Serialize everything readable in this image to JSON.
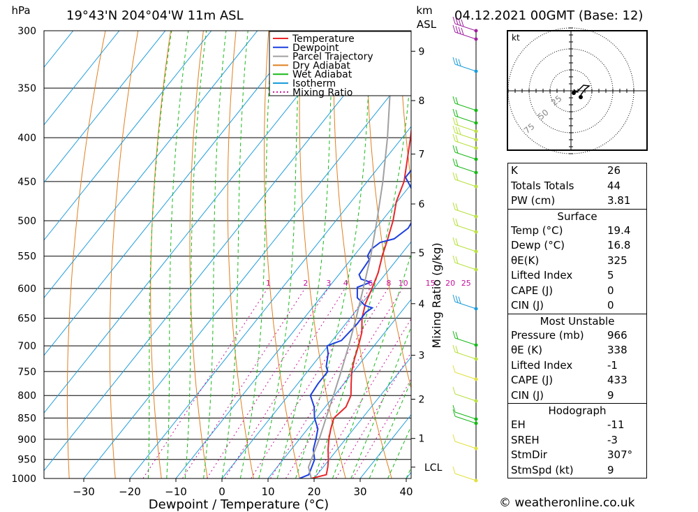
{
  "header": {
    "hpa_unit": "hPa",
    "location": "19°43'N  204°04'W  11m  ASL",
    "km_unit_line1": "km",
    "km_unit_line2": "ASL",
    "run_info": "04.12.2021  00GMT  (Base: 12)"
  },
  "chart_data": {
    "type": "line",
    "title": "",
    "xlabel": "Dewpoint / Temperature (°C)",
    "ylabel": "hPa",
    "secondary_ylabel": "Mixing Ratio (g/kg)",
    "y_scale": "log-pressure",
    "xlim": [
      -40,
      40
    ],
    "ylim": [
      1000,
      300
    ],
    "x_ticks": [
      -30,
      -20,
      -10,
      0,
      10,
      20,
      30,
      40
    ],
    "pressure_ticks": [
      300,
      350,
      400,
      450,
      500,
      550,
      600,
      650,
      700,
      750,
      800,
      850,
      900,
      950,
      1000
    ],
    "height_km_ticks": [
      {
        "km": 9,
        "p": 317
      },
      {
        "km": 8,
        "p": 362
      },
      {
        "km": 7,
        "p": 418
      },
      {
        "km": 6,
        "p": 478
      },
      {
        "km": 5,
        "p": 545
      },
      {
        "km": 4,
        "p": 625
      },
      {
        "km": 3,
        "p": 718
      },
      {
        "km": 2,
        "p": 808
      },
      {
        "km": 1,
        "p": 898
      }
    ],
    "lcl": {
      "label": "LCL",
      "p": 970
    },
    "mixing_ratio_labels": [
      "1",
      "2",
      "3",
      "4",
      "6",
      "8",
      "10",
      "15",
      "20",
      "25"
    ],
    "legend": [
      "Temperature",
      "Dewpoint",
      "Parcel Trajectory",
      "Dry Adiabat",
      "Wet Adiabat",
      "Isotherm",
      "Mixing Ratio"
    ],
    "grid": true,
    "series": [
      {
        "name": "Temperature",
        "color": "#e8262b",
        "points": [
          [
            1000,
            19.4
          ],
          [
            990,
            22
          ],
          [
            970,
            21
          ],
          [
            950,
            19.8
          ],
          [
            925,
            18
          ],
          [
            900,
            16.4
          ],
          [
            875,
            15
          ],
          [
            850,
            13.8
          ],
          [
            825,
            14.5
          ],
          [
            800,
            13.6
          ],
          [
            775,
            11.6
          ],
          [
            750,
            9.6
          ],
          [
            725,
            8
          ],
          [
            700,
            6.6
          ],
          [
            675,
            5
          ],
          [
            650,
            2.6
          ],
          [
            625,
            0.8
          ],
          [
            600,
            -0.4
          ],
          [
            575,
            -1.8
          ],
          [
            550,
            -3.8
          ],
          [
            525,
            -5.6
          ],
          [
            500,
            -7.6
          ],
          [
            475,
            -10.2
          ],
          [
            450,
            -12
          ],
          [
            425,
            -15
          ],
          [
            400,
            -18.2
          ],
          [
            375,
            -21.8
          ],
          [
            350,
            -26.2
          ],
          [
            325,
            -31.2
          ],
          [
            300,
            -35.6
          ]
        ]
      },
      {
        "name": "Dewpoint",
        "color": "#1c3fe0",
        "points": [
          [
            1000,
            16.8
          ],
          [
            990,
            18.2
          ],
          [
            950,
            16.8
          ],
          [
            925,
            14.8
          ],
          [
            900,
            13.6
          ],
          [
            875,
            12.2
          ],
          [
            850,
            9.6
          ],
          [
            825,
            7.6
          ],
          [
            800,
            4.8
          ],
          [
            775,
            4.4
          ],
          [
            750,
            4.4
          ],
          [
            740,
            3.2
          ],
          [
            715,
            1.4
          ],
          [
            700,
            -0.2
          ],
          [
            690,
            2
          ],
          [
            660,
            2.5
          ],
          [
            640,
            2.4
          ],
          [
            632,
            3
          ],
          [
            628,
            1
          ],
          [
            615,
            -2
          ],
          [
            598,
            -3.8
          ],
          [
            590,
            -1.8
          ],
          [
            585,
            -4.4
          ],
          [
            578,
            -5.6
          ],
          [
            555,
            -6
          ],
          [
            550,
            -7
          ],
          [
            540,
            -7.4
          ],
          [
            530,
            -6.6
          ],
          [
            525,
            -4.2
          ],
          [
            510,
            -3
          ],
          [
            490,
            -3.8
          ],
          [
            474,
            -5.8
          ],
          [
            455,
            -10
          ],
          [
            445,
            -12.4
          ],
          [
            430,
            -12.4
          ],
          [
            410,
            -11.6
          ],
          [
            400,
            -13.6
          ],
          [
            398,
            -16.2
          ],
          [
            390,
            -14.8
          ],
          [
            375,
            -16.4
          ],
          [
            365,
            -19.2
          ],
          [
            345,
            -22.4
          ],
          [
            325,
            -27
          ],
          [
            320,
            -33
          ],
          [
            300,
            -34.2
          ]
        ]
      },
      {
        "name": "Parcel Trajectory",
        "color": "#a0a0a0",
        "points": [
          [
            1000,
            19.4
          ],
          [
            970,
            16.8
          ],
          [
            950,
            16.1
          ],
          [
            900,
            14.3
          ],
          [
            850,
            12.1
          ],
          [
            800,
            9.8
          ],
          [
            750,
            7.3
          ],
          [
            700,
            4.5
          ],
          [
            650,
            1.3
          ],
          [
            600,
            -2.3
          ],
          [
            550,
            -6.3
          ],
          [
            500,
            -11.1
          ],
          [
            450,
            -16.6
          ],
          [
            400,
            -23.2
          ],
          [
            350,
            -31.2
          ],
          [
            300,
            -40.8
          ]
        ]
      }
    ]
  },
  "hodograph": {
    "unit": "kt",
    "ring_labels": [
      "25",
      "50",
      "75"
    ]
  },
  "stats": {
    "main": [
      {
        "label": "K",
        "value": "26"
      },
      {
        "label": "Totals Totals",
        "value": "44"
      },
      {
        "label": "PW (cm)",
        "value": "3.81"
      }
    ],
    "surface_title": "Surface",
    "surface": [
      {
        "label": "Temp (°C)",
        "value": "19.4"
      },
      {
        "label": "Dewp (°C)",
        "value": "16.8"
      },
      {
        "label": "θE(K)",
        "value": "325"
      },
      {
        "label": "Lifted Index",
        "value": "5"
      },
      {
        "label": "CAPE (J)",
        "value": "0"
      },
      {
        "label": "CIN (J)",
        "value": "0"
      }
    ],
    "mu_title": "Most Unstable",
    "mu": [
      {
        "label": "Pressure (mb)",
        "value": "966"
      },
      {
        "label": "θE (K)",
        "value": "338"
      },
      {
        "label": "Lifted Index",
        "value": "-1"
      },
      {
        "label": "CAPE (J)",
        "value": "433"
      },
      {
        "label": "CIN (J)",
        "value": "9"
      }
    ],
    "hodo_title": "Hodograph",
    "hodo": [
      {
        "label": "EH",
        "value": "-11"
      },
      {
        "label": "SREH",
        "value": "-3"
      },
      {
        "label": "StmDir",
        "value": "307°"
      },
      {
        "label": "StmSpd (kt)",
        "value": "9"
      }
    ]
  },
  "credit": "© weatheronline.co.uk",
  "colors": {
    "temperature": "#e8262b",
    "dewpoint": "#1c3fe0",
    "parcel": "#a0a0a0",
    "dry_adiabat": "#e07f1f",
    "wet_adiabat": "#16b816",
    "isotherm": "#1a9bdb",
    "mixing_ratio": "#c8109a"
  }
}
